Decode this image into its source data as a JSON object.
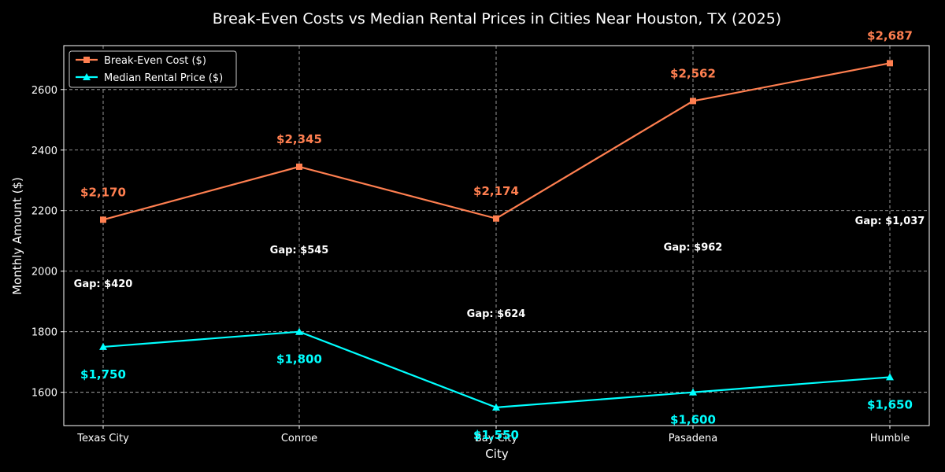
{
  "chart_data": {
    "type": "line",
    "title": "Break-Even Costs vs Median Rental Prices in Cities Near Houston, TX (2025)",
    "xlabel": "City",
    "ylabel": "Monthly Amount ($)",
    "categories": [
      "Texas City",
      "Conroe",
      "Bay City",
      "Pasadena",
      "Humble"
    ],
    "ylim": [
      1490,
      2745
    ],
    "yticks": [
      1600,
      1800,
      2000,
      2200,
      2400,
      2600
    ],
    "grid": true,
    "legend_position": "top-left",
    "series": [
      {
        "name": "Break-Even Cost ($)",
        "values": [
          2170,
          2345,
          2174,
          2562,
          2687
        ],
        "labels": [
          "$2,170",
          "$2,345",
          "$2,174",
          "$2,562",
          "$2,687"
        ],
        "color": "#ff7f50",
        "marker": "square"
      },
      {
        "name": "Median Rental Price ($)",
        "values": [
          1750,
          1800,
          1550,
          1600,
          1650
        ],
        "labels": [
          "$1,750",
          "$1,800",
          "$1,550",
          "$1,600",
          "$1,650"
        ],
        "color": "#00ffff",
        "marker": "triangle"
      }
    ],
    "gap_labels": [
      "Gap: $420",
      "Gap: $545",
      "Gap: $624",
      "Gap: $962",
      "Gap: $1,037"
    ]
  }
}
